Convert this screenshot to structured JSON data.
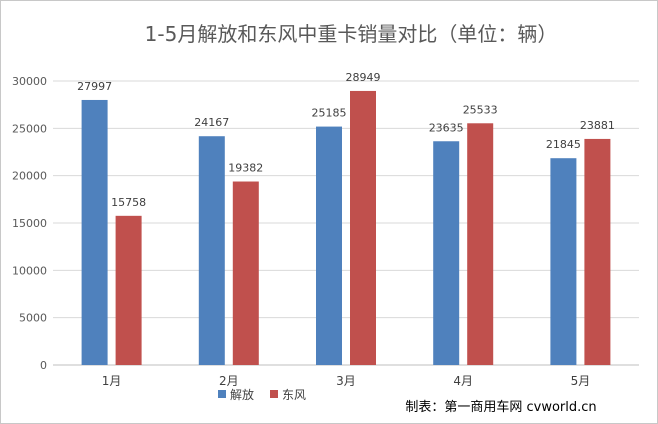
{
  "chart_data": {
    "type": "bar",
    "title": "1-5月解放和东风中重卡销量对比（单位：辆）",
    "categories": [
      "1月",
      "2月",
      "3月",
      "4月",
      "5月"
    ],
    "series": [
      {
        "name": "解放",
        "color": "#4f81bd",
        "values": [
          27997,
          24167,
          25185,
          23635,
          21845
        ]
      },
      {
        "name": "东风",
        "color": "#c0504d",
        "values": [
          15758,
          19382,
          28949,
          25533,
          23881
        ]
      }
    ],
    "ylim": [
      0,
      30000
    ],
    "yticks": [
      0,
      5000,
      10000,
      15000,
      20000,
      25000,
      30000
    ],
    "grid": true,
    "legend": "bottom-center",
    "xlabel": "",
    "ylabel": ""
  },
  "credit": "制表：第一商用车网 cvworld.cn"
}
